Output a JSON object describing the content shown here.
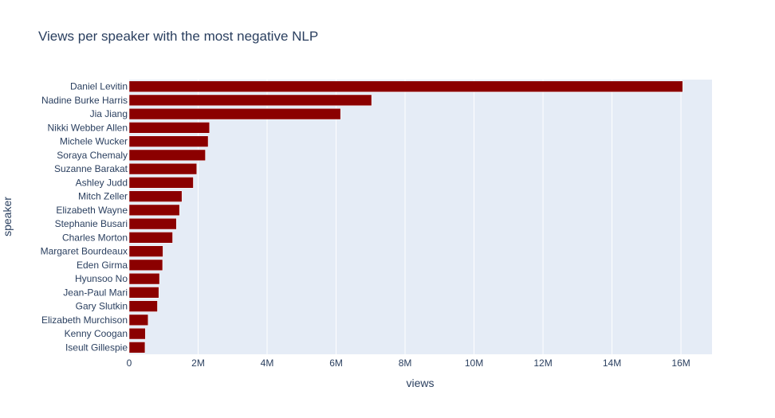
{
  "chart_data": {
    "type": "bar",
    "orientation": "horizontal",
    "title": "Views per speaker with the most negative NLP",
    "xlabel": "views",
    "ylabel": "speaker",
    "xlim": [
      0,
      16900000
    ],
    "x_ticks": [
      0,
      2000000,
      4000000,
      6000000,
      8000000,
      10000000,
      12000000,
      14000000,
      16000000
    ],
    "x_tick_labels": [
      "0",
      "2M",
      "4M",
      "6M",
      "8M",
      "10M",
      "12M",
      "14M",
      "16M"
    ],
    "grid": true,
    "bar_color": "#8b0000",
    "plot_bg": "#e5ecf6",
    "categories": [
      "Daniel Levitin",
      "Nadine Burke Harris",
      "Jia Jiang",
      "Nikki Webber Allen",
      "Michele Wucker",
      "Soraya Chemaly",
      "Suzanne Barakat",
      "Ashley Judd",
      "Mitch Zeller",
      "Elizabeth Wayne",
      "Stephanie Busari",
      "Charles Morton",
      "Margaret Bourdeaux",
      "Eden Girma",
      "Hyunsoo No",
      "Jean-Paul Mari",
      "Gary Slutkin",
      "Elizabeth Murchison",
      "Kenny Coogan",
      "Iseult Gillespie"
    ],
    "values": [
      16050000,
      7030000,
      6130000,
      2330000,
      2290000,
      2210000,
      1960000,
      1860000,
      1530000,
      1460000,
      1370000,
      1260000,
      980000,
      970000,
      880000,
      860000,
      820000,
      550000,
      470000,
      460000
    ]
  }
}
